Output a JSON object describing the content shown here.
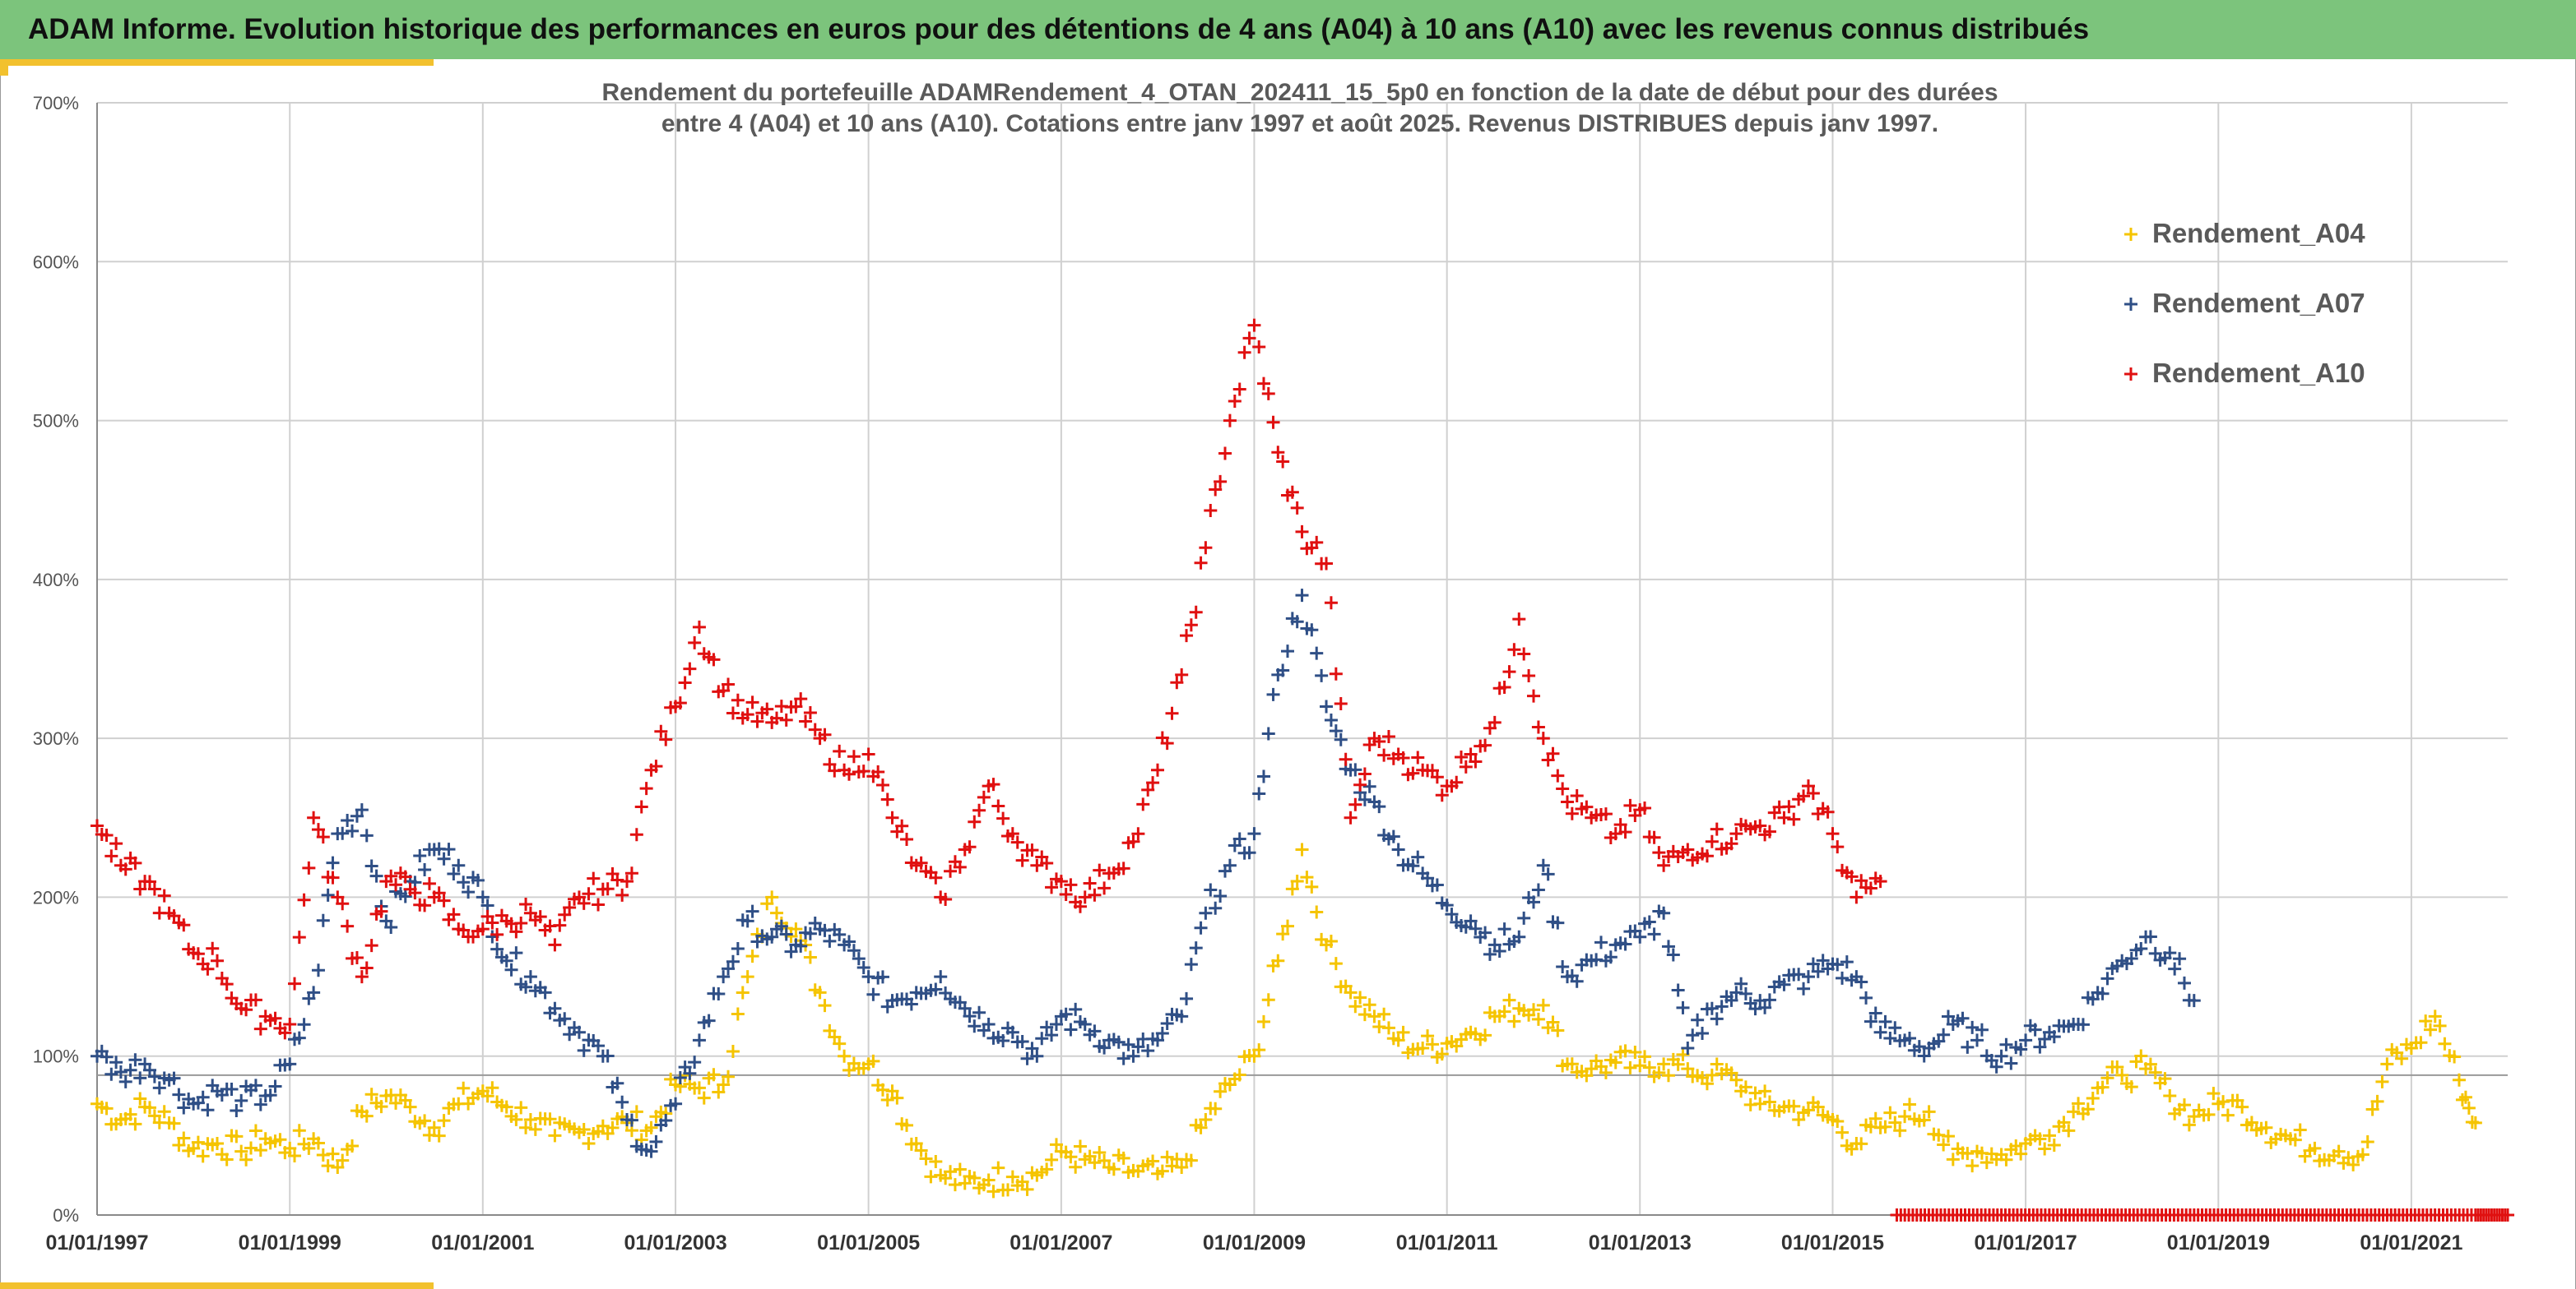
{
  "header": {
    "title": "ADAM Informe. Evolution historique des performances en euros pour des détentions de 4 ans (A04) à 10 ans (A10) avec les revenus connus distribués"
  },
  "colors": {
    "header_bg": "#7cc47c",
    "accent": "#f2c12e",
    "a04": "#f5c400",
    "a07": "#2f4f86",
    "a10": "#e01010",
    "grid": "#d0d0d0"
  },
  "chart_data": {
    "type": "scatter",
    "title": "Rendement du portefeuille ADAMRendement_4_OTAN_202411_15_5p0  en fonction de la date de début pour des durées",
    "subtitle": "entre 4 (A04) et 10 ans (A10). Cotations entre janv 1997 et août 2025. Revenus DISTRIBUES depuis janv 1997.",
    "xlabel": "",
    "ylabel": "",
    "x_range": [
      "1997-01-01",
      "2022-01-01"
    ],
    "ylim": [
      0,
      700
    ],
    "yticks": [
      0,
      100,
      200,
      300,
      400,
      500,
      600,
      700
    ],
    "ytick_labels": [
      "0%",
      "100%",
      "200%",
      "300%",
      "400%",
      "500%",
      "600%",
      "700%"
    ],
    "xticks": [
      "1997-01-01",
      "1999-01-01",
      "2001-01-01",
      "2003-01-01",
      "2005-01-01",
      "2007-01-01",
      "2009-01-01",
      "2011-01-01",
      "2013-01-01",
      "2015-01-01",
      "2017-01-01",
      "2019-01-01",
      "2021-01-01"
    ],
    "xtick_labels": [
      "01/01/1997",
      "01/01/1999",
      "01/01/2001",
      "01/01/2003",
      "01/01/2005",
      "01/01/2007",
      "01/01/2009",
      "01/01/2011",
      "01/01/2013",
      "01/01/2015",
      "01/01/2017",
      "01/01/2019",
      "01/01/2021"
    ],
    "reference_line": 88,
    "grid": true,
    "legend_position": "top-right",
    "series": [
      {
        "name": "Rendement_A04",
        "color": "#f5c400",
        "x": [
          "1997-01-01",
          "1997-04-01",
          "1997-07-01",
          "1997-10-01",
          "1998-01-01",
          "1998-04-01",
          "1998-07-01",
          "1998-10-01",
          "1999-01-01",
          "1999-04-01",
          "1999-07-01",
          "1999-10-01",
          "2000-01-01",
          "2000-04-01",
          "2000-07-01",
          "2000-10-01",
          "2001-01-01",
          "2001-04-01",
          "2001-07-01",
          "2001-10-01",
          "2002-01-01",
          "2002-04-01",
          "2002-07-01",
          "2002-10-01",
          "2003-01-01",
          "2003-04-01",
          "2003-07-01",
          "2003-10-01",
          "2004-01-01",
          "2004-04-01",
          "2004-07-01",
          "2004-10-01",
          "2005-01-01",
          "2005-04-01",
          "2005-07-01",
          "2005-10-01",
          "2006-01-01",
          "2006-04-01",
          "2006-07-01",
          "2006-10-01",
          "2007-01-01",
          "2007-04-01",
          "2007-07-01",
          "2007-10-01",
          "2008-01-01",
          "2008-04-01",
          "2008-07-01",
          "2008-10-01",
          "2009-01-01",
          "2009-04-01",
          "2009-07-01",
          "2009-10-01",
          "2010-01-01",
          "2010-04-01",
          "2010-07-01",
          "2010-10-01",
          "2011-01-01",
          "2011-04-01",
          "2011-07-01",
          "2011-10-01",
          "2012-01-01",
          "2012-04-01",
          "2012-07-01",
          "2012-10-01",
          "2013-01-01",
          "2013-04-01",
          "2013-07-01",
          "2013-10-01",
          "2014-01-01",
          "2014-04-01",
          "2014-07-01",
          "2014-10-01",
          "2015-01-01",
          "2015-04-01",
          "2015-07-01",
          "2015-10-01",
          "2016-01-01",
          "2016-04-01",
          "2016-07-01",
          "2016-10-01",
          "2017-01-01",
          "2017-04-01",
          "2017-07-01",
          "2017-10-01",
          "2018-01-01",
          "2018-04-01",
          "2018-07-01",
          "2018-10-01",
          "2019-01-01",
          "2019-04-01",
          "2019-07-01",
          "2019-10-01",
          "2020-01-01",
          "2020-04-01",
          "2020-07-01",
          "2020-10-01",
          "2021-01-01",
          "2021-04-01",
          "2021-07-01",
          "2021-09-01"
        ],
        "y": [
          70,
          60,
          68,
          58,
          42,
          45,
          40,
          48,
          42,
          48,
          30,
          65,
          75,
          68,
          55,
          70,
          78,
          68,
          60,
          50,
          52,
          56,
          58,
          55,
          82,
          80,
          82,
          150,
          200,
          180,
          140,
          100,
          95,
          78,
          45,
          25,
          20,
          22,
          24,
          25,
          40,
          35,
          30,
          28,
          26,
          30,
          60,
          82,
          100,
          160,
          230,
          170,
          140,
          125,
          110,
          105,
          108,
          115,
          125,
          130,
          132,
          95,
          92,
          96,
          94,
          95,
          92,
          88,
          85,
          70,
          68,
          66,
          60,
          45,
          55,
          62,
          65,
          35,
          40,
          38,
          45,
          50,
          65,
          80,
          88,
          92,
          75,
          62,
          70,
          68,
          55,
          48,
          42,
          40,
          38,
          95,
          105,
          125,
          85,
          58
        ]
      },
      {
        "name": "Rendement_A07",
        "color": "#2f4f86",
        "x": [
          "1997-01-01",
          "1997-04-01",
          "1997-07-01",
          "1997-10-01",
          "1998-01-01",
          "1998-04-01",
          "1998-07-01",
          "1998-10-01",
          "1999-01-01",
          "1999-04-01",
          "1999-07-01",
          "1999-10-01",
          "2000-01-01",
          "2000-04-01",
          "2000-07-01",
          "2000-10-01",
          "2001-01-01",
          "2001-04-01",
          "2001-07-01",
          "2001-10-01",
          "2002-01-01",
          "2002-04-01",
          "2002-07-01",
          "2002-10-01",
          "2003-01-01",
          "2003-04-01",
          "2003-07-01",
          "2003-10-01",
          "2004-01-01",
          "2004-04-01",
          "2004-07-01",
          "2004-10-01",
          "2005-01-01",
          "2005-04-01",
          "2005-07-01",
          "2005-10-01",
          "2006-01-01",
          "2006-04-01",
          "2006-07-01",
          "2006-10-01",
          "2007-01-01",
          "2007-04-01",
          "2007-07-01",
          "2007-10-01",
          "2008-01-01",
          "2008-04-01",
          "2008-07-01",
          "2008-10-01",
          "2009-01-01",
          "2009-04-01",
          "2009-07-01",
          "2009-10-01",
          "2010-01-01",
          "2010-04-01",
          "2010-07-01",
          "2010-10-01",
          "2011-01-01",
          "2011-04-01",
          "2011-07-01",
          "2011-10-01",
          "2012-01-01",
          "2012-04-01",
          "2012-07-01",
          "2012-10-01",
          "2013-01-01",
          "2013-04-01",
          "2013-07-01",
          "2013-10-01",
          "2014-01-01",
          "2014-04-01",
          "2014-07-01",
          "2014-10-01",
          "2015-01-01",
          "2015-04-01",
          "2015-07-01",
          "2015-10-01",
          "2016-01-01",
          "2016-04-01",
          "2016-07-01",
          "2016-10-01",
          "2017-01-01",
          "2017-04-01",
          "2017-07-01",
          "2017-10-01",
          "2018-01-01",
          "2018-04-01",
          "2018-07-01",
          "2018-10-01"
        ],
        "y": [
          100,
          90,
          95,
          85,
          70,
          78,
          72,
          75,
          95,
          140,
          240,
          255,
          185,
          210,
          230,
          220,
          200,
          160,
          150,
          130,
          115,
          100,
          60,
          40,
          70,
          110,
          150,
          185,
          175,
          170,
          180,
          170,
          150,
          135,
          140,
          150,
          130,
          120,
          115,
          100,
          125,
          120,
          110,
          100,
          110,
          125,
          190,
          220,
          240,
          340,
          390,
          320,
          280,
          260,
          230,
          215,
          195,
          185,
          170,
          175,
          220,
          150,
          160,
          170,
          175,
          190,
          105,
          130,
          140,
          135,
          145,
          150,
          158,
          150,
          115,
          110,
          105,
          120,
          110,
          100,
          110,
          115,
          120,
          140,
          160,
          175,
          165,
          135
        ]
      },
      {
        "name": "Rendement_A10",
        "color": "#e01010",
        "x": [
          "1997-01-01",
          "1997-04-01",
          "1997-07-01",
          "1997-10-01",
          "1998-01-01",
          "1998-04-01",
          "1998-07-01",
          "1998-10-01",
          "1999-01-01",
          "1999-04-01",
          "1999-07-01",
          "1999-10-01",
          "2000-01-01",
          "2000-04-01",
          "2000-07-01",
          "2000-10-01",
          "2001-01-01",
          "2001-04-01",
          "2001-07-01",
          "2001-10-01",
          "2002-01-01",
          "2002-04-01",
          "2002-07-01",
          "2002-10-01",
          "2003-01-01",
          "2003-04-01",
          "2003-07-01",
          "2003-10-01",
          "2004-01-01",
          "2004-04-01",
          "2004-07-01",
          "2004-10-01",
          "2005-01-01",
          "2005-04-01",
          "2005-07-01",
          "2005-10-01",
          "2006-01-01",
          "2006-04-01",
          "2006-07-01",
          "2006-10-01",
          "2007-01-01",
          "2007-04-01",
          "2007-07-01",
          "2007-10-01",
          "2008-01-01",
          "2008-04-01",
          "2008-07-01",
          "2008-10-01",
          "2009-01-01",
          "2009-04-01",
          "2009-07-01",
          "2009-10-01",
          "2010-01-01",
          "2010-04-01",
          "2010-07-01",
          "2010-10-01",
          "2011-01-01",
          "2011-04-01",
          "2011-07-01",
          "2011-10-01",
          "2012-01-01",
          "2012-04-01",
          "2012-07-01",
          "2012-10-01",
          "2013-01-01",
          "2013-04-01",
          "2013-07-01",
          "2013-10-01",
          "2014-01-01",
          "2014-04-01",
          "2014-07-01",
          "2014-10-01",
          "2015-01-01",
          "2015-04-01",
          "2015-07-01"
        ],
        "y": [
          245,
          220,
          210,
          190,
          165,
          160,
          130,
          125,
          120,
          250,
          200,
          150,
          210,
          205,
          200,
          180,
          180,
          185,
          190,
          170,
          200,
          205,
          210,
          280,
          320,
          370,
          330,
          315,
          310,
          320,
          300,
          280,
          290,
          250,
          220,
          200,
          230,
          270,
          240,
          220,
          210,
          200,
          215,
          235,
          280,
          340,
          420,
          500,
          560,
          480,
          430,
          410,
          250,
          300,
          290,
          280,
          270,
          290,
          310,
          375,
          300,
          260,
          250,
          240,
          255,
          220,
          230,
          235,
          240,
          245,
          250,
          270,
          240,
          200,
          210
        ]
      },
      {
        "name": "",
        "color": "#e01010",
        "baseline": true,
        "x": [
          "2015-09-01",
          "2016-03-01",
          "2016-09-01",
          "2017-03-01",
          "2017-09-01",
          "2018-03-01",
          "2018-09-01",
          "2019-03-01",
          "2019-09-01",
          "2020-03-01",
          "2020-09-01",
          "2021-03-01",
          "2021-09-01",
          "2022-01-01"
        ],
        "y": [
          0,
          0,
          0,
          0,
          0,
          0,
          0,
          0,
          0,
          0,
          0,
          0,
          0,
          0
        ]
      }
    ]
  }
}
